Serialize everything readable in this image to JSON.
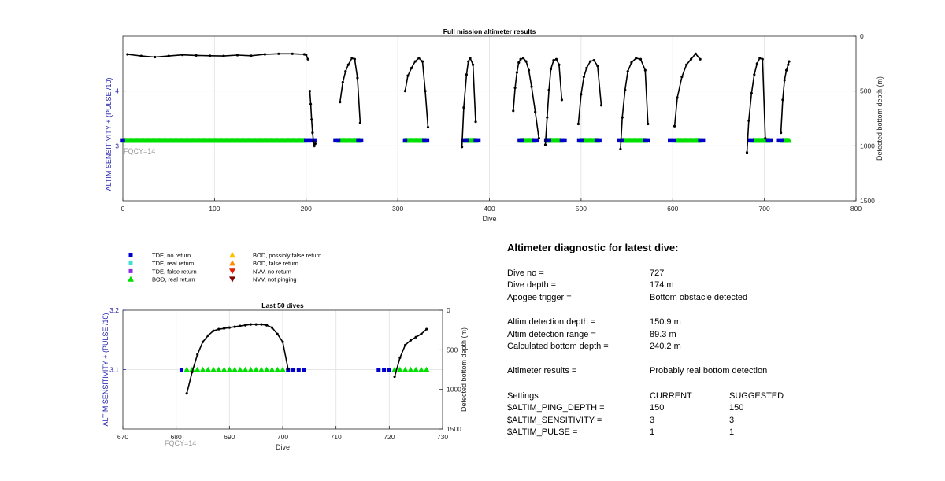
{
  "chart_data": [
    {
      "type": "scatter",
      "title": "Full mission altimeter results",
      "xlabel": "Dive",
      "ylabel_left": "ALTIM SENSITIVITY + (PULSE /10)",
      "ylabel_right": "Detected bottom depth (m)",
      "xlim": [
        0,
        800
      ],
      "xticks": [
        "0",
        "100",
        "200",
        "300",
        "400",
        "500",
        "600",
        "700",
        "800"
      ],
      "ylim_left": [
        2,
        5
      ],
      "yticks_left": [
        "3",
        "4"
      ],
      "ylim_right": [
        0,
        1500
      ],
      "yticks_right": [
        "0",
        "500",
        "1000",
        "1500"
      ],
      "right_axis_reversed": true,
      "grid": true,
      "annotation": "FQCY=14",
      "bod_real_ranges": [
        [
          1,
          198
        ],
        [
          236,
          258
        ],
        [
          308,
          330
        ],
        [
          373,
          385
        ],
        [
          434,
          448
        ],
        [
          464,
          478
        ],
        [
          500,
          518
        ],
        [
          545,
          570
        ],
        [
          604,
          629
        ],
        [
          688,
          705
        ],
        [
          720,
          727
        ]
      ],
      "tde_no_return_dives": [
        0,
        200,
        203,
        206,
        209,
        232,
        235,
        257,
        260,
        308,
        329,
        332,
        371,
        375,
        385,
        388,
        433,
        435,
        449,
        452,
        462,
        465,
        479,
        482,
        498,
        501,
        517,
        520,
        542,
        545,
        570,
        573,
        597,
        601,
        630,
        633,
        683,
        686,
        704,
        707,
        716,
        719
      ],
      "bottom_depth_segments": [
        {
          "x": [
            5,
            20,
            35,
            50,
            65,
            80,
            95,
            110,
            125,
            140,
            155,
            170,
            185,
            198,
            200,
            202
          ],
          "y": [
            165,
            180,
            190,
            180,
            170,
            175,
            178,
            180,
            172,
            178,
            165,
            160,
            160,
            165,
            170,
            210
          ]
        },
        {
          "x": [
            204,
            205,
            206,
            207,
            208,
            209,
            210
          ],
          "y": [
            500,
            620,
            760,
            880,
            960,
            1000,
            980
          ]
        },
        {
          "x": [
            237,
            240,
            243,
            246,
            250,
            253,
            256,
            259
          ],
          "y": [
            600,
            420,
            320,
            260,
            200,
            210,
            380,
            790
          ]
        },
        {
          "x": [
            308,
            311,
            315,
            319,
            323,
            327,
            330,
            333
          ],
          "y": [
            500,
            360,
            290,
            230,
            200,
            230,
            500,
            830
          ]
        },
        {
          "x": [
            370,
            372,
            375,
            377,
            379,
            382,
            385
          ],
          "y": [
            1010,
            650,
            350,
            230,
            200,
            260,
            780
          ]
        },
        {
          "x": [
            426,
            428,
            430,
            432,
            434,
            437,
            440,
            443,
            446,
            450,
            454
          ],
          "y": [
            680,
            470,
            330,
            240,
            210,
            200,
            230,
            310,
            460,
            690,
            930
          ]
        },
        {
          "x": [
            461,
            463,
            465,
            467,
            470,
            473,
            476,
            479
          ],
          "y": [
            990,
            740,
            490,
            300,
            220,
            210,
            260,
            580
          ]
        },
        {
          "x": [
            497,
            500,
            503,
            506,
            510,
            514,
            518,
            522
          ],
          "y": [
            800,
            530,
            370,
            290,
            230,
            220,
            270,
            630
          ]
        },
        {
          "x": [
            543,
            545,
            548,
            551,
            555,
            560,
            565,
            570,
            573
          ],
          "y": [
            1030,
            740,
            490,
            320,
            240,
            200,
            210,
            310,
            800
          ]
        },
        {
          "x": [
            602,
            605,
            610,
            615,
            620,
            625,
            630
          ],
          "y": [
            820,
            560,
            370,
            260,
            210,
            160,
            210
          ]
        },
        {
          "x": [
            681,
            683,
            686,
            689,
            692,
            695,
            698,
            701
          ],
          "y": [
            1060,
            770,
            520,
            350,
            250,
            200,
            210,
            930
          ]
        },
        {
          "x": [
            718,
            720,
            722,
            724,
            726,
            727
          ],
          "y": [
            880,
            580,
            400,
            310,
            260,
            230
          ]
        }
      ]
    },
    {
      "type": "scatter",
      "title": "Last 50 dives",
      "xlabel": "Dive",
      "ylabel_left": "ALTIM SENSITIVITY + (PULSE /10)",
      "ylabel_right": "Detected bottom depth (m)",
      "xlim": [
        670,
        730
      ],
      "xticks": [
        "670",
        "680",
        "690",
        "700",
        "710",
        "720",
        "730"
      ],
      "ylim_left": [
        3.0,
        3.2
      ],
      "yticks_left": [
        "3.1",
        "3.2"
      ],
      "ylim_right": [
        0,
        1500
      ],
      "yticks_right": [
        "0",
        "500",
        "1000",
        "1500"
      ],
      "right_axis_reversed": true,
      "grid": true,
      "annotation": "FQCY=14",
      "tde_no_return": {
        "x": [
          681,
          701,
          702,
          703,
          704,
          718,
          719,
          720
        ],
        "y": 3.1
      },
      "bod_real_return": {
        "x": [
          682,
          683,
          684,
          685,
          686,
          687,
          688,
          689,
          690,
          691,
          692,
          693,
          694,
          695,
          696,
          697,
          698,
          699,
          700,
          721,
          722,
          723,
          724,
          725,
          726,
          727
        ],
        "y": 3.1
      },
      "bottom_depth": [
        {
          "x": [
            682,
            683,
            684,
            685,
            686,
            687,
            688,
            689,
            690,
            691,
            692,
            693,
            694,
            695,
            696,
            697,
            698,
            699,
            700,
            701
          ],
          "y": [
            1050,
            780,
            560,
            400,
            320,
            260,
            240,
            230,
            220,
            210,
            200,
            190,
            180,
            180,
            180,
            190,
            220,
            300,
            400,
            740
          ]
        },
        {
          "x": [
            721,
            722,
            723,
            724,
            725,
            726,
            727
          ],
          "y": [
            840,
            600,
            440,
            380,
            340,
            300,
            240
          ]
        }
      ]
    }
  ],
  "legend": [
    {
      "label": "TDE, no return",
      "marker": "square",
      "color": "#0000cc"
    },
    {
      "label": "TDE, real return",
      "marker": "square",
      "color": "#40e0d0"
    },
    {
      "label": "TDE, false return",
      "marker": "square",
      "color": "#8a2be2"
    },
    {
      "label": "BOD, real return",
      "marker": "triangle-up",
      "color": "#00e000"
    },
    {
      "label": "BOD, possibly false return",
      "marker": "triangle-up",
      "color": "#ffc000"
    },
    {
      "label": "BOD, false return",
      "marker": "triangle-up",
      "color": "#ff8c00"
    },
    {
      "label": "NVV, no return",
      "marker": "triangle-down",
      "color": "#e02000"
    },
    {
      "label": "NVV, not pinging",
      "marker": "triangle-down",
      "color": "#800000"
    }
  ],
  "diagnostic": {
    "title": "Altimeter diagnostic for latest dive:",
    "rows": [
      {
        "label": "Dive no =",
        "value": "727"
      },
      {
        "label": "Dive depth =",
        "value": "174 m"
      },
      {
        "label": "Apogee trigger =",
        "value": "Bottom obstacle detected"
      },
      {
        "label": "Altim detection depth =",
        "value": "150.9 m"
      },
      {
        "label": "Altim detection range =",
        "value": "89.3 m"
      },
      {
        "label": "Calculated bottom depth =",
        "value": "240.2 m"
      },
      {
        "label": "Altimeter results =",
        "value": "Probably real bottom detection"
      }
    ],
    "settings_header": {
      "label": "Settings",
      "current": "CURRENT",
      "suggested": "SUGGESTED"
    },
    "settings": [
      {
        "label": "$ALTIM_PING_DEPTH =",
        "current": "150",
        "suggested": "150"
      },
      {
        "label": "$ALTIM_SENSITIVITY =",
        "current": "3",
        "suggested": "3"
      },
      {
        "label": "$ALTIM_PULSE =",
        "current": "1",
        "suggested": "1"
      }
    ]
  },
  "colors": {
    "left_axis": "#2222aa",
    "annotation": "#999999",
    "grid": "#e6e6e6",
    "depth_line": "#000000"
  }
}
